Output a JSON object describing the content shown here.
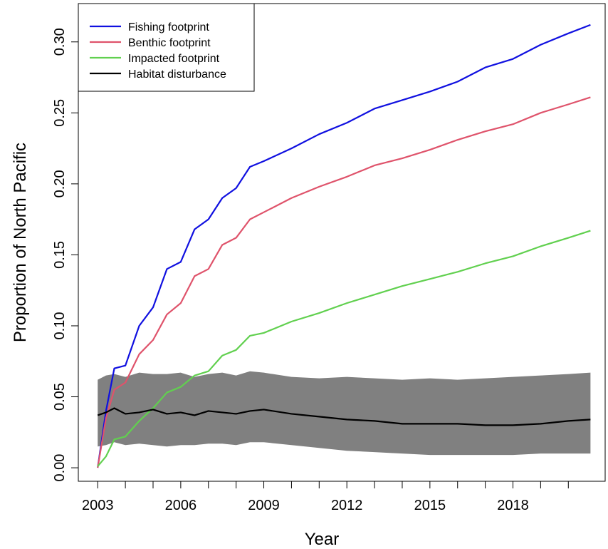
{
  "chart_data": {
    "type": "line",
    "x_label": "Year",
    "y_label": "Proportion of North Pacific",
    "x": [
      2003,
      2003.3,
      2003.6,
      2004,
      2004.5,
      2005,
      2005.5,
      2006,
      2006.5,
      2007,
      2007.5,
      2008,
      2008.5,
      2009,
      2010,
      2011,
      2012,
      2013,
      2014,
      2015,
      2016,
      2017,
      2018,
      2019,
      2020,
      2020.8
    ],
    "series": [
      {
        "name": "Fishing footprint",
        "color": "#1010e0",
        "values": [
          0.0,
          0.04,
          0.07,
          0.072,
          0.1,
          0.113,
          0.14,
          0.145,
          0.168,
          0.175,
          0.19,
          0.197,
          0.212,
          0.216,
          0.225,
          0.235,
          0.243,
          0.253,
          0.259,
          0.265,
          0.272,
          0.282,
          0.288,
          0.298,
          0.306,
          0.312
        ]
      },
      {
        "name": "Benthic footprint",
        "color": "#df536b",
        "values": [
          0.0,
          0.035,
          0.055,
          0.06,
          0.08,
          0.09,
          0.108,
          0.116,
          0.135,
          0.14,
          0.157,
          0.162,
          0.175,
          0.18,
          0.19,
          0.198,
          0.205,
          0.213,
          0.218,
          0.224,
          0.231,
          0.237,
          0.242,
          0.25,
          0.256,
          0.261
        ]
      },
      {
        "name": "Impacted footprint",
        "color": "#61d04f",
        "values": [
          0.001,
          0.008,
          0.02,
          0.022,
          0.033,
          0.042,
          0.053,
          0.057,
          0.065,
          0.068,
          0.079,
          0.083,
          0.093,
          0.095,
          0.103,
          0.109,
          0.116,
          0.122,
          0.128,
          0.133,
          0.138,
          0.144,
          0.149,
          0.156,
          0.162,
          0.167
        ]
      },
      {
        "name": "Habitat disturbance",
        "color": "#000000",
        "values": [
          0.037,
          0.039,
          0.042,
          0.038,
          0.039,
          0.041,
          0.038,
          0.039,
          0.037,
          0.04,
          0.039,
          0.038,
          0.04,
          0.041,
          0.038,
          0.036,
          0.034,
          0.033,
          0.031,
          0.031,
          0.031,
          0.03,
          0.03,
          0.031,
          0.033,
          0.034
        ]
      }
    ],
    "band": {
      "color": "#808080",
      "upper": [
        0.062,
        0.065,
        0.066,
        0.064,
        0.067,
        0.066,
        0.066,
        0.067,
        0.064,
        0.066,
        0.067,
        0.065,
        0.068,
        0.067,
        0.064,
        0.063,
        0.064,
        0.063,
        0.062,
        0.063,
        0.062,
        0.063,
        0.064,
        0.065,
        0.066,
        0.067
      ],
      "lower": [
        0.015,
        0.016,
        0.018,
        0.016,
        0.017,
        0.016,
        0.015,
        0.016,
        0.016,
        0.017,
        0.017,
        0.016,
        0.018,
        0.018,
        0.016,
        0.014,
        0.012,
        0.011,
        0.01,
        0.009,
        0.009,
        0.009,
        0.009,
        0.01,
        0.01,
        0.01
      ]
    },
    "xlim": [
      2002.3,
      2021.33
    ],
    "ylim": [
      -0.0095,
      0.327
    ],
    "xticks": [
      2003,
      2006,
      2009,
      2012,
      2015,
      2018
    ],
    "xminor_ticks": [
      2004,
      2005,
      2007,
      2008,
      2010,
      2011,
      2013,
      2014,
      2016,
      2017,
      2019,
      2020
    ],
    "yticks": [
      {
        "value": 0,
        "label": "0.00"
      },
      {
        "value": 0.05,
        "label": "0.05"
      },
      {
        "value": 0.1,
        "label": "0.10"
      },
      {
        "value": 0.15,
        "label": "0.15"
      },
      {
        "value": 0.2,
        "label": "0.20"
      },
      {
        "value": 0.25,
        "label": "0.25"
      },
      {
        "value": 0.3,
        "label": "0.30"
      }
    ],
    "legend": "top-left"
  }
}
